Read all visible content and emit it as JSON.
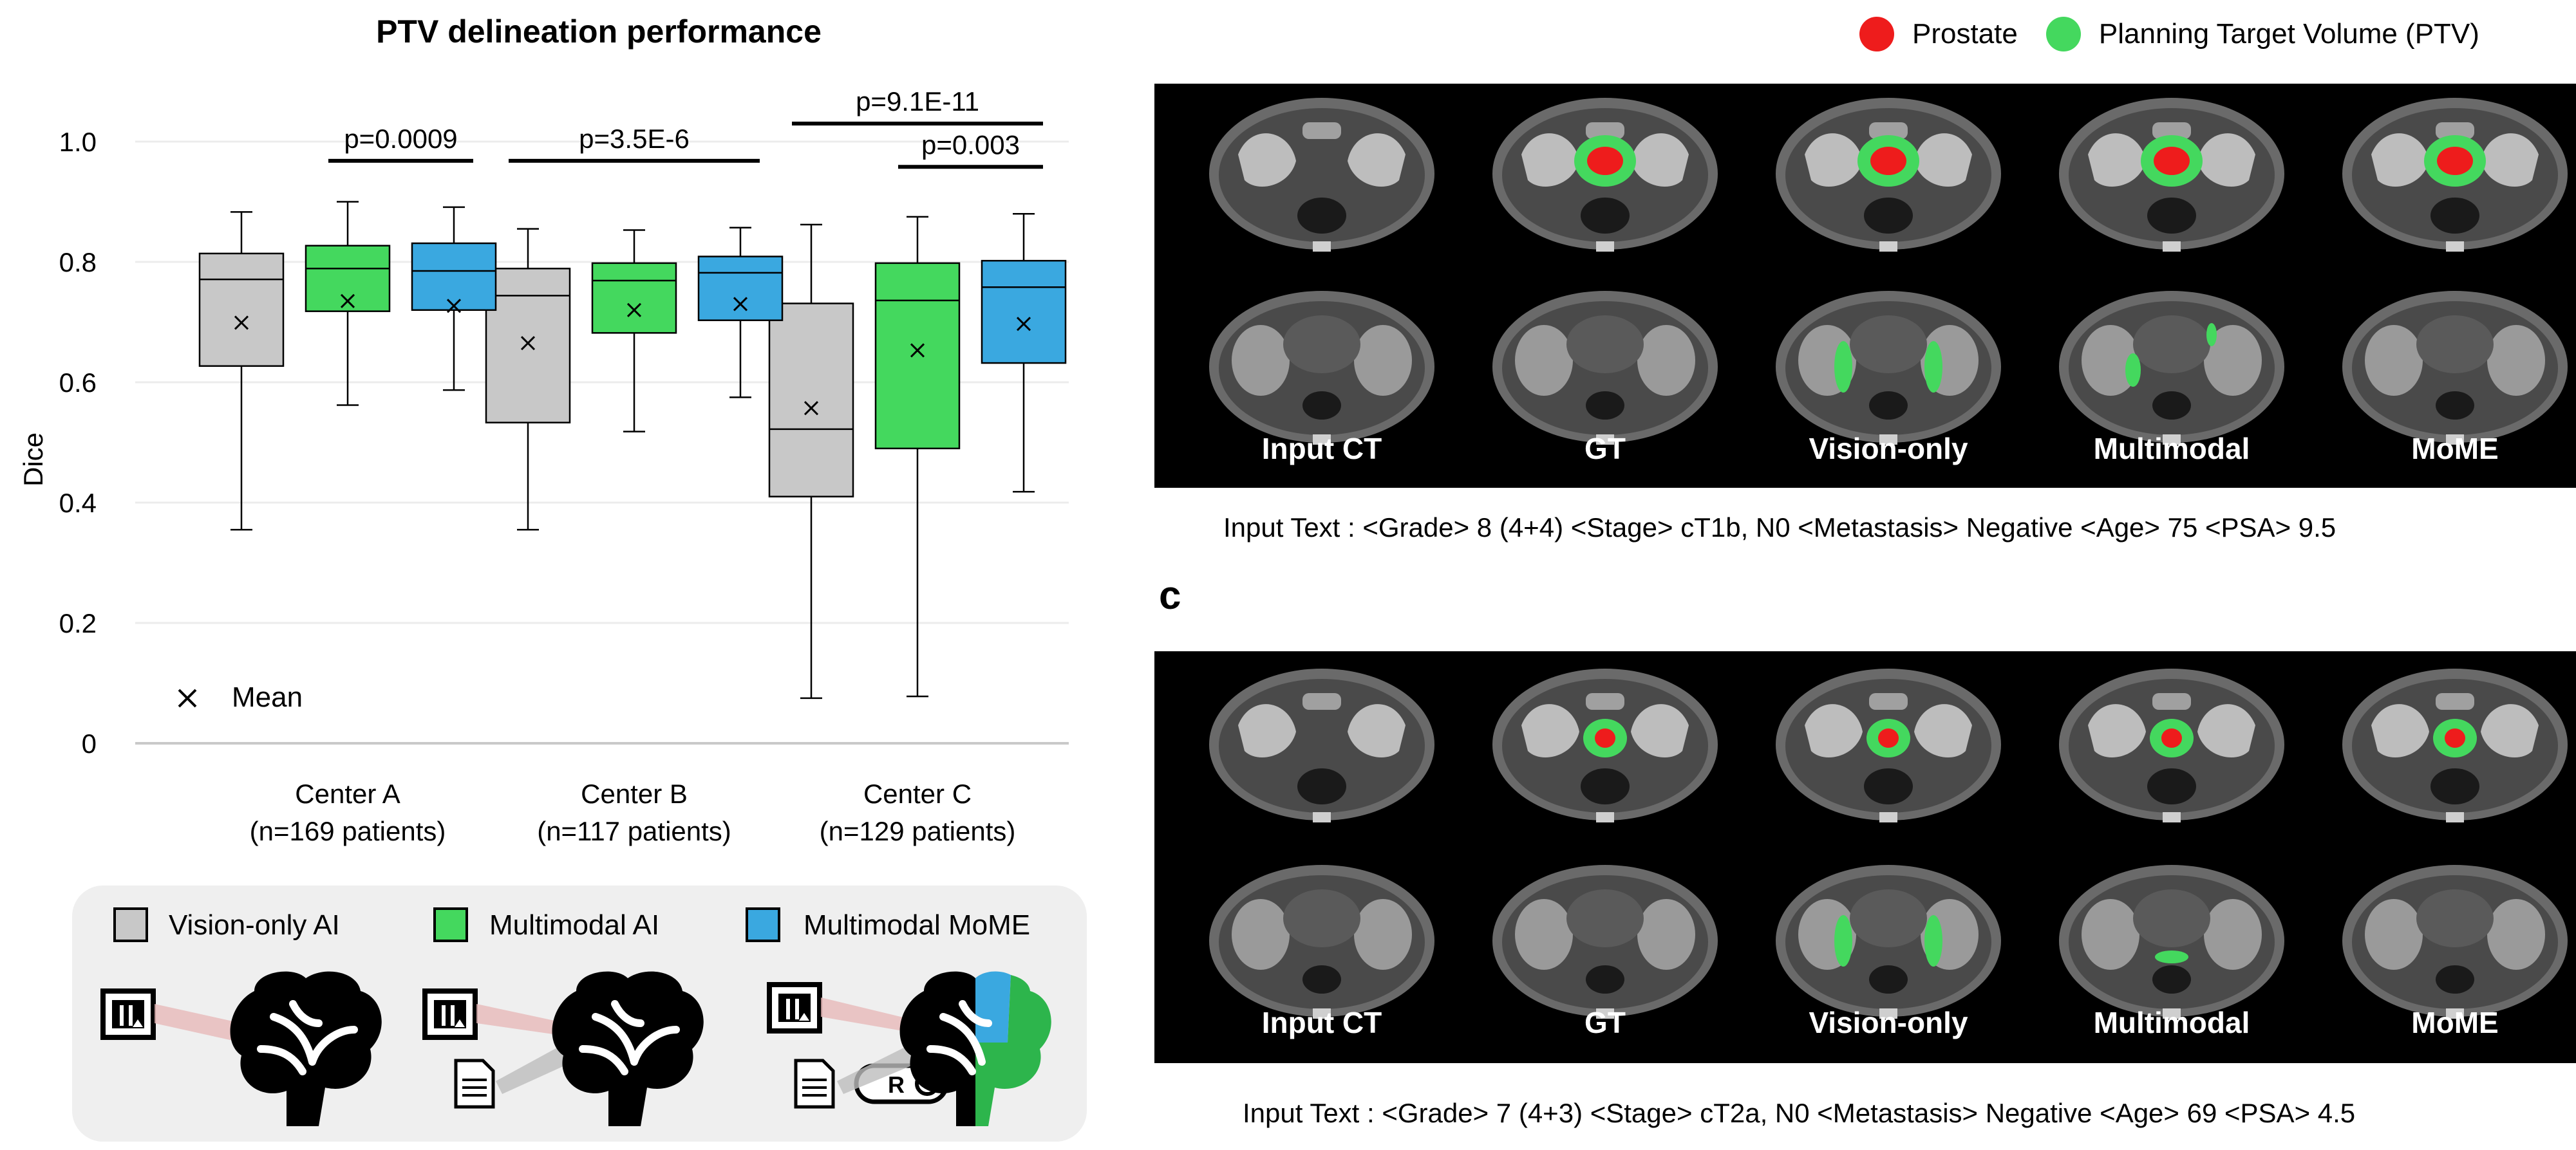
{
  "chart_data": {
    "type": "box",
    "title": "PTV delineation performance",
    "ylabel": "Dice",
    "ylim": [
      0,
      1.05
    ],
    "yticks": [
      "0",
      "0.2",
      "0.4",
      "0.6",
      "0.8",
      "1.0"
    ],
    "yticks_values": [
      0,
      0.2,
      0.4,
      0.6,
      0.8,
      1.0
    ],
    "grid": true,
    "categories": [
      "Center A",
      "Center B",
      "Center C"
    ],
    "category_sub": [
      "(n=169 patients)",
      "(n=117 patients)",
      "(n=129 patients)"
    ],
    "mean_legend": "Mean",
    "series": [
      {
        "name": "Vision-only AI",
        "color": "#c8c8c8",
        "boxes": [
          {
            "min": 0.355,
            "q1": 0.627,
            "median": 0.771,
            "q3": 0.814,
            "max": 0.883,
            "mean": 0.699
          },
          {
            "min": 0.355,
            "q1": 0.533,
            "median": 0.744,
            "q3": 0.789,
            "max": 0.855,
            "mean": 0.665
          },
          {
            "min": 0.075,
            "q1": 0.41,
            "median": 0.522,
            "q3": 0.731,
            "max": 0.862,
            "mean": 0.557
          }
        ]
      },
      {
        "name": "Multimodal AI",
        "color": "#44d85e",
        "boxes": [
          {
            "min": 0.562,
            "q1": 0.718,
            "median": 0.789,
            "q3": 0.827,
            "max": 0.9,
            "mean": 0.735
          },
          {
            "min": 0.518,
            "q1": 0.682,
            "median": 0.769,
            "q3": 0.798,
            "max": 0.853,
            "mean": 0.72
          },
          {
            "min": 0.078,
            "q1": 0.49,
            "median": 0.736,
            "q3": 0.798,
            "max": 0.875,
            "mean": 0.653
          }
        ]
      },
      {
        "name": "Multimodal MoME",
        "color": "#3aa8e0",
        "boxes": [
          {
            "min": 0.587,
            "q1": 0.72,
            "median": 0.785,
            "q3": 0.831,
            "max": 0.891,
            "mean": 0.727
          },
          {
            "min": 0.575,
            "q1": 0.703,
            "median": 0.782,
            "q3": 0.809,
            "max": 0.857,
            "mean": 0.73
          },
          {
            "min": 0.418,
            "q1": 0.632,
            "median": 0.758,
            "q3": 0.802,
            "max": 0.88,
            "mean": 0.697
          }
        ]
      }
    ],
    "annotations": [
      {
        "text": "p=0.0009",
        "category": 0,
        "from": 1,
        "to": 2,
        "y": 0.968
      },
      {
        "text": "p=3.5E-6",
        "category": 1,
        "from": 0,
        "to": 2,
        "y": 0.968
      },
      {
        "text": "p=9.1E-11",
        "category": 2,
        "from": 0,
        "to": 2,
        "y": 1.03
      },
      {
        "text": "p=0.003",
        "category": 2,
        "from": 1,
        "to": 2,
        "y": 0.958
      }
    ]
  },
  "legend_bottom": [
    "Vision-only AI",
    "Multimodal AI",
    "Multimodal MoME"
  ],
  "legend_top": {
    "prostate": {
      "label": "Prostate",
      "color": "#ee1c1c"
    },
    "ptv": {
      "label": "Planning Target Volume (PTV)",
      "color": "#44d85e"
    }
  },
  "panel_b": {
    "labels": [
      "Input CT",
      "GT",
      "Vision-only",
      "Multimodal",
      "MoME"
    ],
    "caption": "Input Text : <Grade> 8 (4+4) <Stage> cT1b, N0 <Metastasis> Negative <Age> 75 <PSA> 9.5"
  },
  "panel_c": {
    "letter": "c",
    "labels": [
      "Input CT",
      "GT",
      "Vision-only",
      "Multimodal",
      "MoME"
    ],
    "caption": "Input Text : <Grade> 7 (4+3) <Stage> cT2a, N0 <Metastasis> Negative <Age> 69 <PSA> 4.5"
  },
  "icon_names": [
    "ct-scan-icon",
    "document-icon",
    "brain-icon",
    "record-toggle-icon"
  ]
}
